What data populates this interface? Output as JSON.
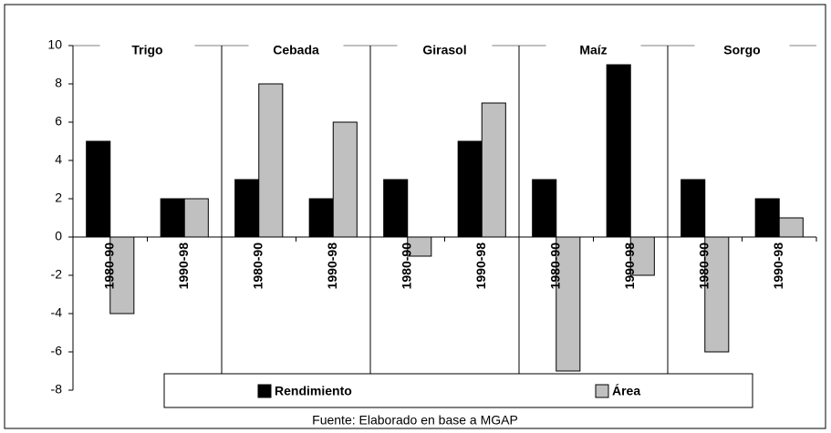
{
  "chart_data": {
    "type": "bar",
    "groups": [
      "Trigo",
      "Cebada",
      "Girasol",
      "Maíz",
      "Sorgo"
    ],
    "categories": [
      "1980-90",
      "1990-98",
      "1980-90",
      "1990-98",
      "1980-90",
      "1990-98",
      "1980-90",
      "1990-98",
      "1980-90",
      "1990-98"
    ],
    "series": [
      {
        "name": "Rendimiento",
        "color": "#000000",
        "values": [
          5,
          2,
          3,
          2,
          3,
          5,
          3,
          9,
          3,
          2
        ]
      },
      {
        "name": "Área",
        "color": "#c0c0c0",
        "values": [
          -4,
          2,
          8,
          6,
          -1,
          7,
          -7,
          -2,
          -6,
          1
        ]
      }
    ],
    "ylim": [
      -8,
      10
    ],
    "yticks": [
      -8,
      -6,
      -4,
      -2,
      0,
      2,
      4,
      6,
      8,
      10
    ],
    "source": "Fuente: Elaborado en base a MGAP"
  }
}
